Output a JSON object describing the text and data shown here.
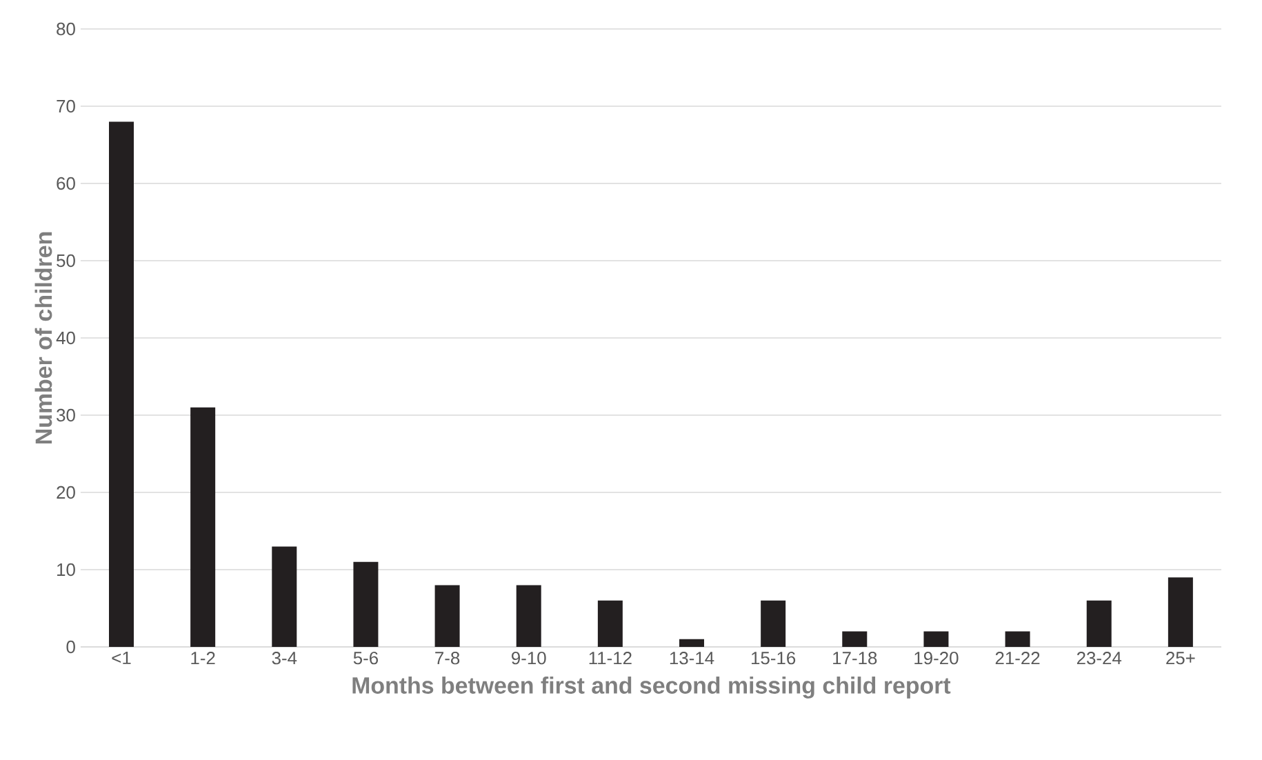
{
  "chart_data": {
    "type": "bar",
    "xlabel": "Months between first and second missing child report",
    "ylabel": "Number of children",
    "categories": [
      "<1",
      "1-2",
      "3-4",
      "5-6",
      "7-8",
      "9-10",
      "11-12",
      "13-14",
      "15-16",
      "17-18",
      "19-20",
      "21-22",
      "23-24",
      "25+"
    ],
    "values": [
      68,
      31,
      13,
      11,
      8,
      8,
      6,
      1,
      6,
      2,
      2,
      2,
      6,
      9
    ],
    "color": "#231f20",
    "ylim": [
      0,
      80
    ],
    "yticks": [
      0,
      10,
      20,
      30,
      40,
      50,
      60,
      70,
      80
    ],
    "grid": "y"
  }
}
